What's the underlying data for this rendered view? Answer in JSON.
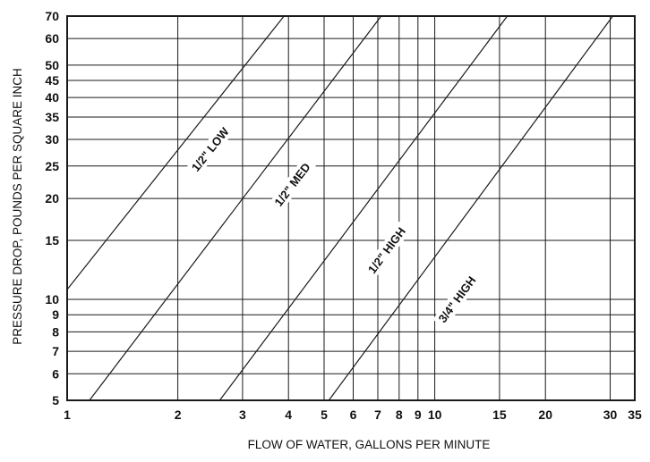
{
  "chart_data": {
    "type": "line",
    "title": "",
    "xlabel": "FLOW OF WATER, GALLONS PER MINUTE",
    "ylabel": "PRESSURE DROP, POUNDS PER SQUARE INCH",
    "x_scale": "log",
    "y_scale": "log",
    "xlim": [
      1,
      35
    ],
    "ylim": [
      5,
      70
    ],
    "grid": true,
    "legend": "none",
    "x_ticks": [
      1,
      2,
      3,
      4,
      5,
      6,
      7,
      8,
      9,
      10,
      15,
      20,
      30,
      35
    ],
    "x_tick_labels": [
      "1",
      "2",
      "3",
      "4",
      "5",
      "6",
      "7",
      "8",
      "9",
      "10",
      "15",
      "20",
      "30",
      "35"
    ],
    "y_ticks": [
      5,
      6,
      7,
      8,
      9,
      10,
      15,
      20,
      25,
      30,
      35,
      40,
      45,
      50,
      60,
      70
    ],
    "y_tick_labels": [
      "5",
      "6",
      "7",
      "8",
      "9",
      "10",
      "15",
      "20",
      "25",
      "30",
      "35",
      "40",
      "45",
      "50",
      "60",
      "70"
    ],
    "line_color": "#1a1a1a",
    "series": [
      {
        "name": "1/2\" LOW",
        "x": [
          1.0,
          3.89
        ],
        "y": [
          10.7,
          70
        ],
        "label_at": {
          "x": 2.45,
          "y": 28
        }
      },
      {
        "name": "1/2\" MED",
        "x": [
          1.15,
          7.15
        ],
        "y": [
          5,
          70
        ],
        "label_at": {
          "x": 4.1,
          "y": 22
        }
      },
      {
        "name": "1/2\" HIGH",
        "x": [
          2.6,
          15.75
        ],
        "y": [
          5,
          70
        ],
        "label_at": {
          "x": 7.4,
          "y": 14
        }
      },
      {
        "name": "3/4\" HIGH",
        "x": [
          5.15,
          30.5
        ],
        "y": [
          5,
          70
        ],
        "label_at": {
          "x": 11.5,
          "y": 10
        }
      }
    ]
  }
}
